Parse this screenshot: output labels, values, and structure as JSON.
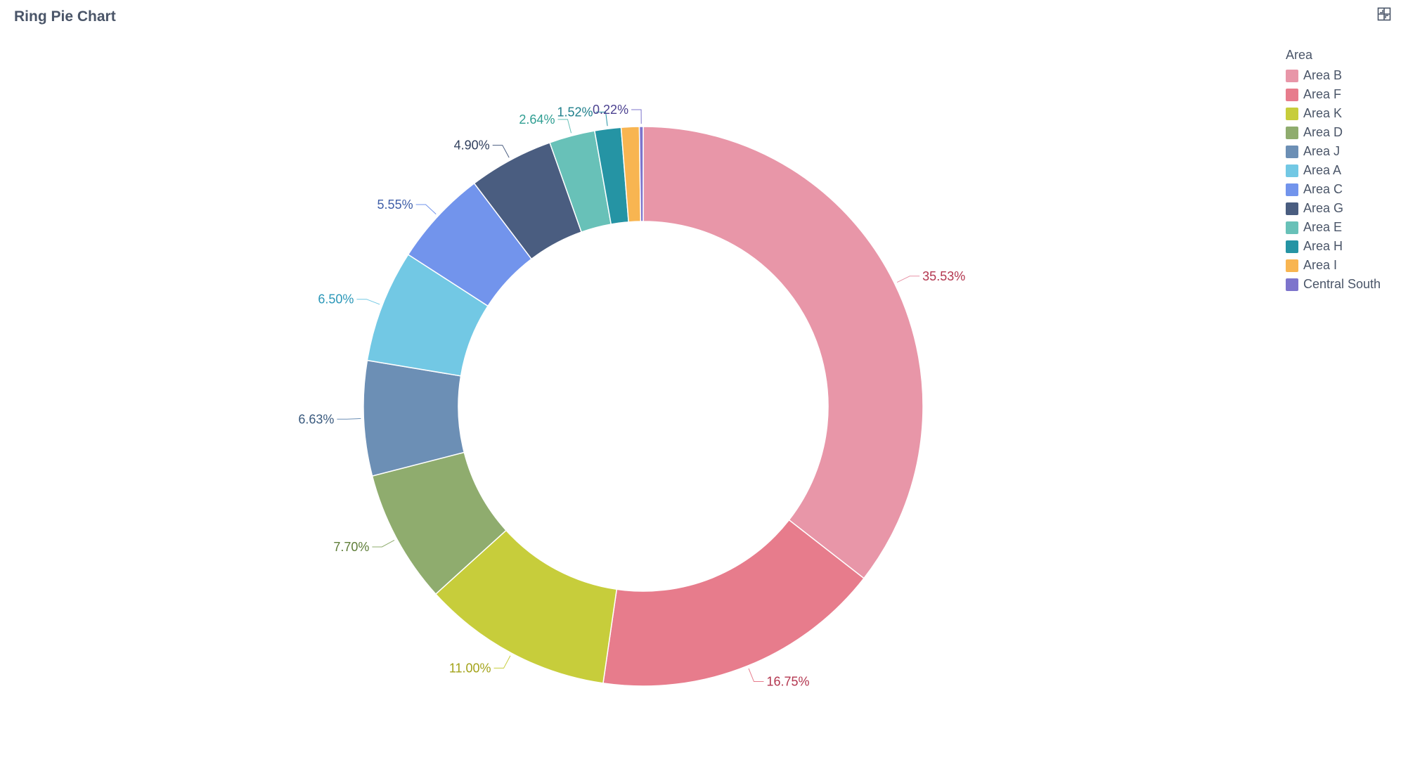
{
  "header": {
    "title": "Ring Pie Chart",
    "expand_icon": "expand-icon"
  },
  "legend": {
    "title": "Area"
  },
  "chart_data": {
    "type": "pie",
    "variant": "donut",
    "title": "Ring Pie Chart",
    "legend_title": "Area",
    "legend_position": "top-right",
    "slices": [
      {
        "name": "Area B",
        "value": 35.53,
        "label": "35.53%",
        "color": "#e896a8",
        "label_color": "#b3364f"
      },
      {
        "name": "Area F",
        "value": 16.75,
        "label": "16.75%",
        "color": "#e77c8c",
        "label_color": "#b3364f"
      },
      {
        "name": "Area K",
        "value": 11.0,
        "label": "11.00%",
        "color": "#c7cd3b",
        "label_color": "#a3a31a"
      },
      {
        "name": "Area D",
        "value": 7.7,
        "label": "7.70%",
        "color": "#8fac6e",
        "label_color": "#5e7d38"
      },
      {
        "name": "Area J",
        "value": 6.63,
        "label": "6.63%",
        "color": "#6c8fb5",
        "label_color": "#3a5a7e"
      },
      {
        "name": "Area A",
        "value": 6.5,
        "label": "6.50%",
        "color": "#72c8e4",
        "label_color": "#2b97b8"
      },
      {
        "name": "Area C",
        "value": 5.55,
        "label": "5.55%",
        "color": "#7294ec",
        "label_color": "#3f5ea8"
      },
      {
        "name": "Area G",
        "value": 4.9,
        "label": "4.90%",
        "color": "#4a5d80",
        "label_color": "#2f3e5c"
      },
      {
        "name": "Area E",
        "value": 2.64,
        "label": "2.64%",
        "color": "#68c1b8",
        "label_color": "#2f9e92"
      },
      {
        "name": "Area H",
        "value": 1.52,
        "label": "1.52%",
        "color": "#2594a4",
        "label_color": "#1f7f8b"
      },
      {
        "name": "Area I",
        "value": 1.04,
        "label": "",
        "color": "#f8b551",
        "label_color": "#c98a2a"
      },
      {
        "name": "Central South",
        "value": 0.22,
        "label": "0.22%",
        "color": "#7d74cc",
        "label_color": "#4b4190"
      }
    ]
  }
}
